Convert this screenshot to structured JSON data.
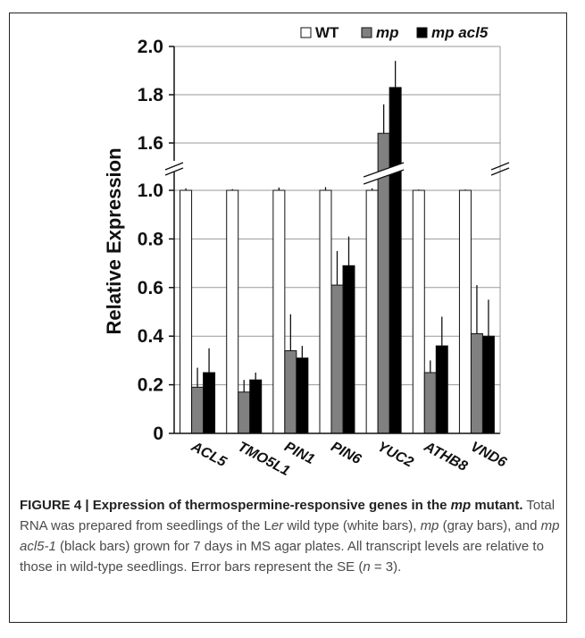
{
  "chart_data": {
    "type": "bar",
    "ylabel": "Relative Expression",
    "xlabel": "",
    "y_axis_break": [
      1.0,
      1.6
    ],
    "ylim": [
      0,
      2.0
    ],
    "yticks": [
      "0",
      "0.2",
      "0.4",
      "0.6",
      "0.8",
      "1.0",
      "1.6",
      "1.8",
      "2.0"
    ],
    "legend_placement": "top-right",
    "categories": [
      "ACL5",
      "TMO5L1",
      "PIN1",
      "PIN6",
      "YUC2",
      "ATHB8",
      "VND6"
    ],
    "series": [
      {
        "name": "WT",
        "color": "#ffffff",
        "values": [
          1.0,
          1.0,
          1.0,
          1.0,
          1.0,
          1.0,
          1.0
        ],
        "errors": [
          0.05,
          0.03,
          0.07,
          0.08,
          0.05,
          0.02,
          0.02
        ]
      },
      {
        "name": "mp",
        "color": "#808080",
        "values": [
          0.19,
          0.17,
          0.34,
          0.61,
          1.64,
          0.25,
          0.41
        ],
        "errors": [
          0.08,
          0.05,
          0.15,
          0.14,
          0.12,
          0.05,
          0.2
        ]
      },
      {
        "name": "mp acl5",
        "color": "#000000",
        "values": [
          0.25,
          0.22,
          0.31,
          0.69,
          1.83,
          0.36,
          0.4
        ],
        "errors": [
          0.1,
          0.03,
          0.05,
          0.12,
          0.11,
          0.12,
          0.15
        ]
      }
    ]
  },
  "caption": {
    "label": "FIGURE 4 | Expression of thermospermine-responsive genes in the ",
    "label_italic": "mp",
    "label_end": " mutant.",
    "t1": " Total RNA was prepared from seedlings of the L",
    "t1_italic": "er",
    "t2": " wild type (white bars), ",
    "t2_italic": "mp",
    "t3": " (gray bars), and ",
    "t3_italic": "mp acl5-1",
    "t4": " (black bars) grown for 7 days in MS agar plates. All transcript levels are relative to those in wild-type seedlings. Error bars represent the SE (",
    "t4_italic": "n",
    "t5": " = 3)."
  }
}
